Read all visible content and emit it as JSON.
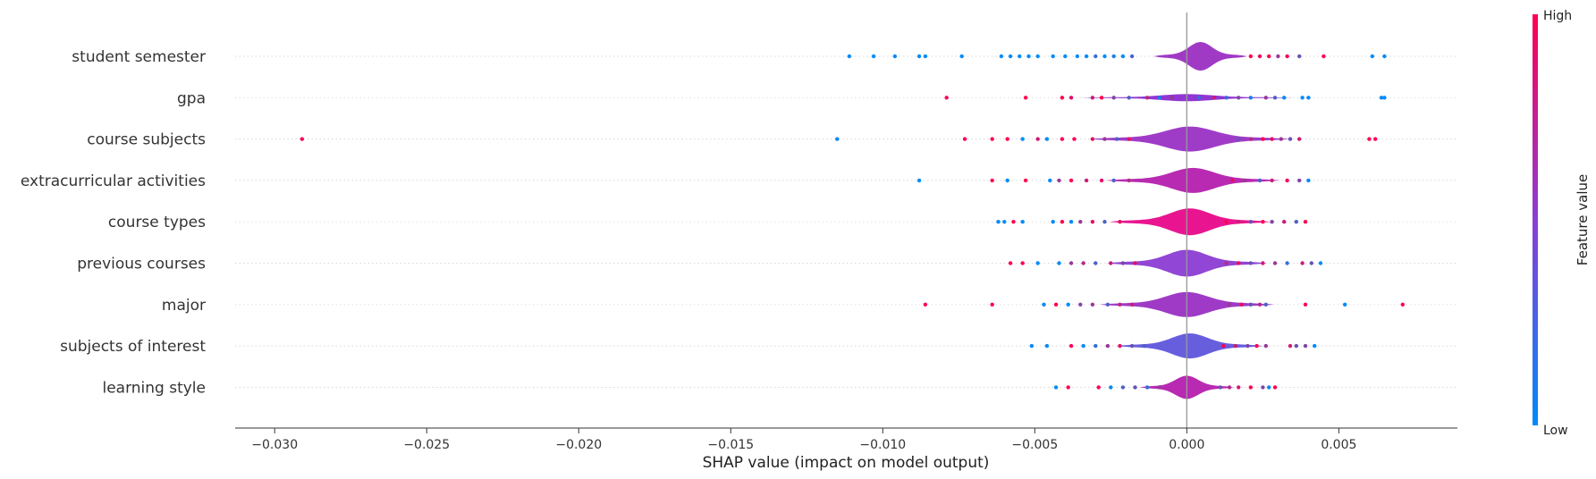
{
  "chart_data": {
    "type": "scatter",
    "variant": "shap-violin-summary",
    "xlabel": "SHAP value (impact on model output)",
    "xlim": [
      -0.0313,
      0.0089
    ],
    "x_ticks": [
      -0.03,
      -0.025,
      -0.02,
      -0.015,
      -0.01,
      -0.005,
      0.0,
      0.005
    ],
    "x_tick_labels": [
      "−0.030",
      "−0.025",
      "−0.020",
      "−0.015",
      "−0.010",
      "−0.005",
      "0.000",
      "0.005"
    ],
    "colorbar": {
      "label": "Feature value",
      "high_label": "High",
      "low_label": "Low",
      "high_color": "#ff0052",
      "low_color": "#008bfb"
    },
    "features": [
      {
        "name": "student semester",
        "violin": {
          "color": "#9b2fc2",
          "half_width": 0.0007,
          "peak_at": 0.00045,
          "max_width": 16
        },
        "points": [
          [
            -0.0111,
            0
          ],
          [
            -0.0103,
            0
          ],
          [
            -0.0096,
            0
          ],
          [
            -0.0088,
            0
          ],
          [
            -0.0086,
            0
          ],
          [
            -0.0074,
            0
          ],
          [
            -0.0061,
            0
          ],
          [
            -0.0058,
            0
          ],
          [
            -0.0055,
            0
          ],
          [
            -0.0052,
            0
          ],
          [
            -0.0049,
            0
          ],
          [
            -0.0044,
            0
          ],
          [
            -0.004,
            0
          ],
          [
            -0.0036,
            0
          ],
          [
            -0.0033,
            0
          ],
          [
            -0.003,
            0.2
          ],
          [
            -0.0027,
            0
          ],
          [
            -0.0024,
            0.1
          ],
          [
            -0.0021,
            0
          ],
          [
            -0.0018,
            0.3
          ],
          [
            0.0021,
            1
          ],
          [
            0.0024,
            0.9
          ],
          [
            0.0027,
            1
          ],
          [
            0.003,
            0.6
          ],
          [
            0.0033,
            1
          ],
          [
            0.0037,
            0.4
          ],
          [
            0.0045,
            1
          ],
          [
            0.0061,
            0
          ],
          [
            0.0065,
            0
          ]
        ]
      },
      {
        "name": "gpa",
        "violin": {
          "color": "#8a2bd0",
          "half_width": 0.0016,
          "peak_at": 0.0,
          "max_width": 4
        },
        "points": [
          [
            -0.0079,
            1
          ],
          [
            -0.0053,
            1
          ],
          [
            -0.0041,
            1
          ],
          [
            -0.0038,
            0.9
          ],
          [
            -0.0031,
            0.8
          ],
          [
            -0.0028,
            1
          ],
          [
            -0.0024,
            0.5
          ],
          [
            -0.0019,
            0.3
          ],
          [
            -0.0013,
            0.7
          ],
          [
            -0.0009,
            0.1
          ],
          [
            -0.0005,
            0.6
          ],
          [
            0.0004,
            0.2
          ],
          [
            0.0009,
            0.8
          ],
          [
            0.0013,
            0.2
          ],
          [
            0.0017,
            0.5
          ],
          [
            0.0021,
            0.1
          ],
          [
            0.0026,
            0.6
          ],
          [
            0.0029,
            0.3
          ],
          [
            0.0032,
            0
          ],
          [
            0.0038,
            0
          ],
          [
            0.004,
            0
          ],
          [
            0.0064,
            0
          ],
          [
            0.0065,
            0
          ]
        ]
      },
      {
        "name": "course subjects",
        "violin": {
          "color": "#9a32c4",
          "half_width": 0.0015,
          "peak_at": 0.0001,
          "max_width": 14
        },
        "points": [
          [
            -0.0291,
            1
          ],
          [
            -0.0115,
            0
          ],
          [
            -0.0073,
            1
          ],
          [
            -0.0064,
            1
          ],
          [
            -0.0059,
            1
          ],
          [
            -0.0054,
            0
          ],
          [
            -0.0049,
            0.8
          ],
          [
            -0.0046,
            0
          ],
          [
            -0.0041,
            1
          ],
          [
            -0.0037,
            1
          ],
          [
            -0.0031,
            0.9
          ],
          [
            -0.0027,
            0.6
          ],
          [
            -0.0023,
            0.3
          ],
          [
            -0.0019,
            0.9
          ],
          [
            0.0017,
            0.4
          ],
          [
            0.0021,
            0.7
          ],
          [
            0.0025,
            1
          ],
          [
            0.0028,
            0.9
          ],
          [
            0.0031,
            0.6
          ],
          [
            0.0034,
            0.4
          ],
          [
            0.0037,
            0.8
          ],
          [
            0.006,
            1
          ],
          [
            0.0062,
            1
          ]
        ]
      },
      {
        "name": "extracurricular activities",
        "violin": {
          "color": "#b41fae",
          "half_width": 0.0013,
          "peak_at": 0.0002,
          "max_width": 14
        },
        "points": [
          [
            -0.0088,
            0
          ],
          [
            -0.0064,
            1
          ],
          [
            -0.0059,
            0
          ],
          [
            -0.0053,
            1
          ],
          [
            -0.0045,
            0
          ],
          [
            -0.0042,
            0.6
          ],
          [
            -0.0038,
            1
          ],
          [
            -0.0033,
            0.8
          ],
          [
            -0.0028,
            0.9
          ],
          [
            -0.0024,
            0.3
          ],
          [
            -0.0019,
            0.7
          ],
          [
            0.0015,
            0.9
          ],
          [
            0.0019,
            0.6
          ],
          [
            0.0024,
            0.3
          ],
          [
            0.0028,
            0.8
          ],
          [
            0.0033,
            1
          ],
          [
            0.0037,
            0.5
          ],
          [
            0.004,
            0
          ]
        ]
      },
      {
        "name": "course types",
        "violin": {
          "color": "#e8088a",
          "half_width": 0.0012,
          "peak_at": 0.0001,
          "max_width": 15
        },
        "points": [
          [
            -0.0062,
            0
          ],
          [
            -0.006,
            0
          ],
          [
            -0.0057,
            1
          ],
          [
            -0.0054,
            0
          ],
          [
            -0.0044,
            0
          ],
          [
            -0.0041,
            1
          ],
          [
            -0.0038,
            0
          ],
          [
            -0.0035,
            0.6
          ],
          [
            -0.0031,
            0.9
          ],
          [
            -0.0027,
            0.3
          ],
          [
            -0.0022,
            0.9
          ],
          [
            0.0013,
            1
          ],
          [
            0.0017,
            0.8
          ],
          [
            0.0021,
            0.4
          ],
          [
            0.0025,
            1
          ],
          [
            0.0028,
            0.5
          ],
          [
            0.0032,
            0.8
          ],
          [
            0.0036,
            0.3
          ],
          [
            0.0039,
            1
          ]
        ]
      },
      {
        "name": "previous courses",
        "violin": {
          "color": "#8b3cd3",
          "half_width": 0.0012,
          "peak_at": 0.0,
          "max_width": 15
        },
        "points": [
          [
            -0.0058,
            1
          ],
          [
            -0.0054,
            1
          ],
          [
            -0.0049,
            0
          ],
          [
            -0.0042,
            0
          ],
          [
            -0.0038,
            0.6
          ],
          [
            -0.0034,
            0.7
          ],
          [
            -0.003,
            0.3
          ],
          [
            -0.0025,
            0.8
          ],
          [
            -0.0021,
            0.5
          ],
          [
            -0.0017,
            0.9
          ],
          [
            0.0013,
            0.7
          ],
          [
            0.0017,
            1
          ],
          [
            0.0021,
            0.4
          ],
          [
            0.0025,
            0.8
          ],
          [
            0.0029,
            0.6
          ],
          [
            0.0033,
            0.2
          ],
          [
            0.0038,
            0.8
          ],
          [
            0.0041,
            0.4
          ],
          [
            0.0044,
            0
          ]
        ]
      },
      {
        "name": "major",
        "violin": {
          "color": "#9a2fc4",
          "half_width": 0.0013,
          "peak_at": 0.0,
          "max_width": 14
        },
        "points": [
          [
            -0.0086,
            1
          ],
          [
            -0.0064,
            1
          ],
          [
            -0.0047,
            0
          ],
          [
            -0.0043,
            1
          ],
          [
            -0.0039,
            0
          ],
          [
            -0.0035,
            0.5
          ],
          [
            -0.0031,
            0.6
          ],
          [
            -0.0026,
            0.3
          ],
          [
            -0.0022,
            0.7
          ],
          [
            -0.0018,
            0.8
          ],
          [
            0.0014,
            0.6
          ],
          [
            0.0018,
            0.9
          ],
          [
            0.0021,
            0.4
          ],
          [
            0.0024,
            0.7
          ],
          [
            0.0026,
            0.3
          ],
          [
            0.0039,
            1
          ],
          [
            0.0052,
            0
          ],
          [
            0.0071,
            1
          ]
        ]
      },
      {
        "name": "subjects of interest",
        "violin": {
          "color": "#5f55dc",
          "half_width": 0.0011,
          "peak_at": 0.0001,
          "max_width": 14
        },
        "points": [
          [
            -0.0051,
            0
          ],
          [
            -0.0046,
            0
          ],
          [
            -0.0038,
            1
          ],
          [
            -0.0034,
            0
          ],
          [
            -0.003,
            0.2
          ],
          [
            -0.0026,
            0.6
          ],
          [
            -0.0022,
            0.9
          ],
          [
            -0.0018,
            0.4
          ],
          [
            -0.0014,
            0.3
          ],
          [
            0.0012,
            1
          ],
          [
            0.0016,
            0.8
          ],
          [
            0.002,
            0.5
          ],
          [
            0.0023,
            1
          ],
          [
            0.0026,
            0.6
          ],
          [
            0.0034,
            0.8
          ],
          [
            0.0036,
            0.4
          ],
          [
            0.0039,
            0.5
          ],
          [
            0.0042,
            0
          ]
        ]
      },
      {
        "name": "learning style",
        "violin": {
          "color": "#b41fae",
          "half_width": 0.0007,
          "peak_at": 0.0,
          "max_width": 13
        },
        "points": [
          [
            -0.0043,
            0
          ],
          [
            -0.0039,
            1
          ],
          [
            -0.0029,
            1
          ],
          [
            -0.0025,
            0
          ],
          [
            -0.0021,
            0.3
          ],
          [
            -0.0017,
            0.4
          ],
          [
            -0.0013,
            0.2
          ],
          [
            -0.0009,
            0.6
          ],
          [
            0.0011,
            0.4
          ],
          [
            0.0014,
            0.7
          ],
          [
            0.0017,
            0.8
          ],
          [
            0.0021,
            1
          ],
          [
            0.0025,
            0.5
          ],
          [
            0.0027,
            0
          ],
          [
            0.0029,
            1
          ]
        ]
      }
    ]
  }
}
